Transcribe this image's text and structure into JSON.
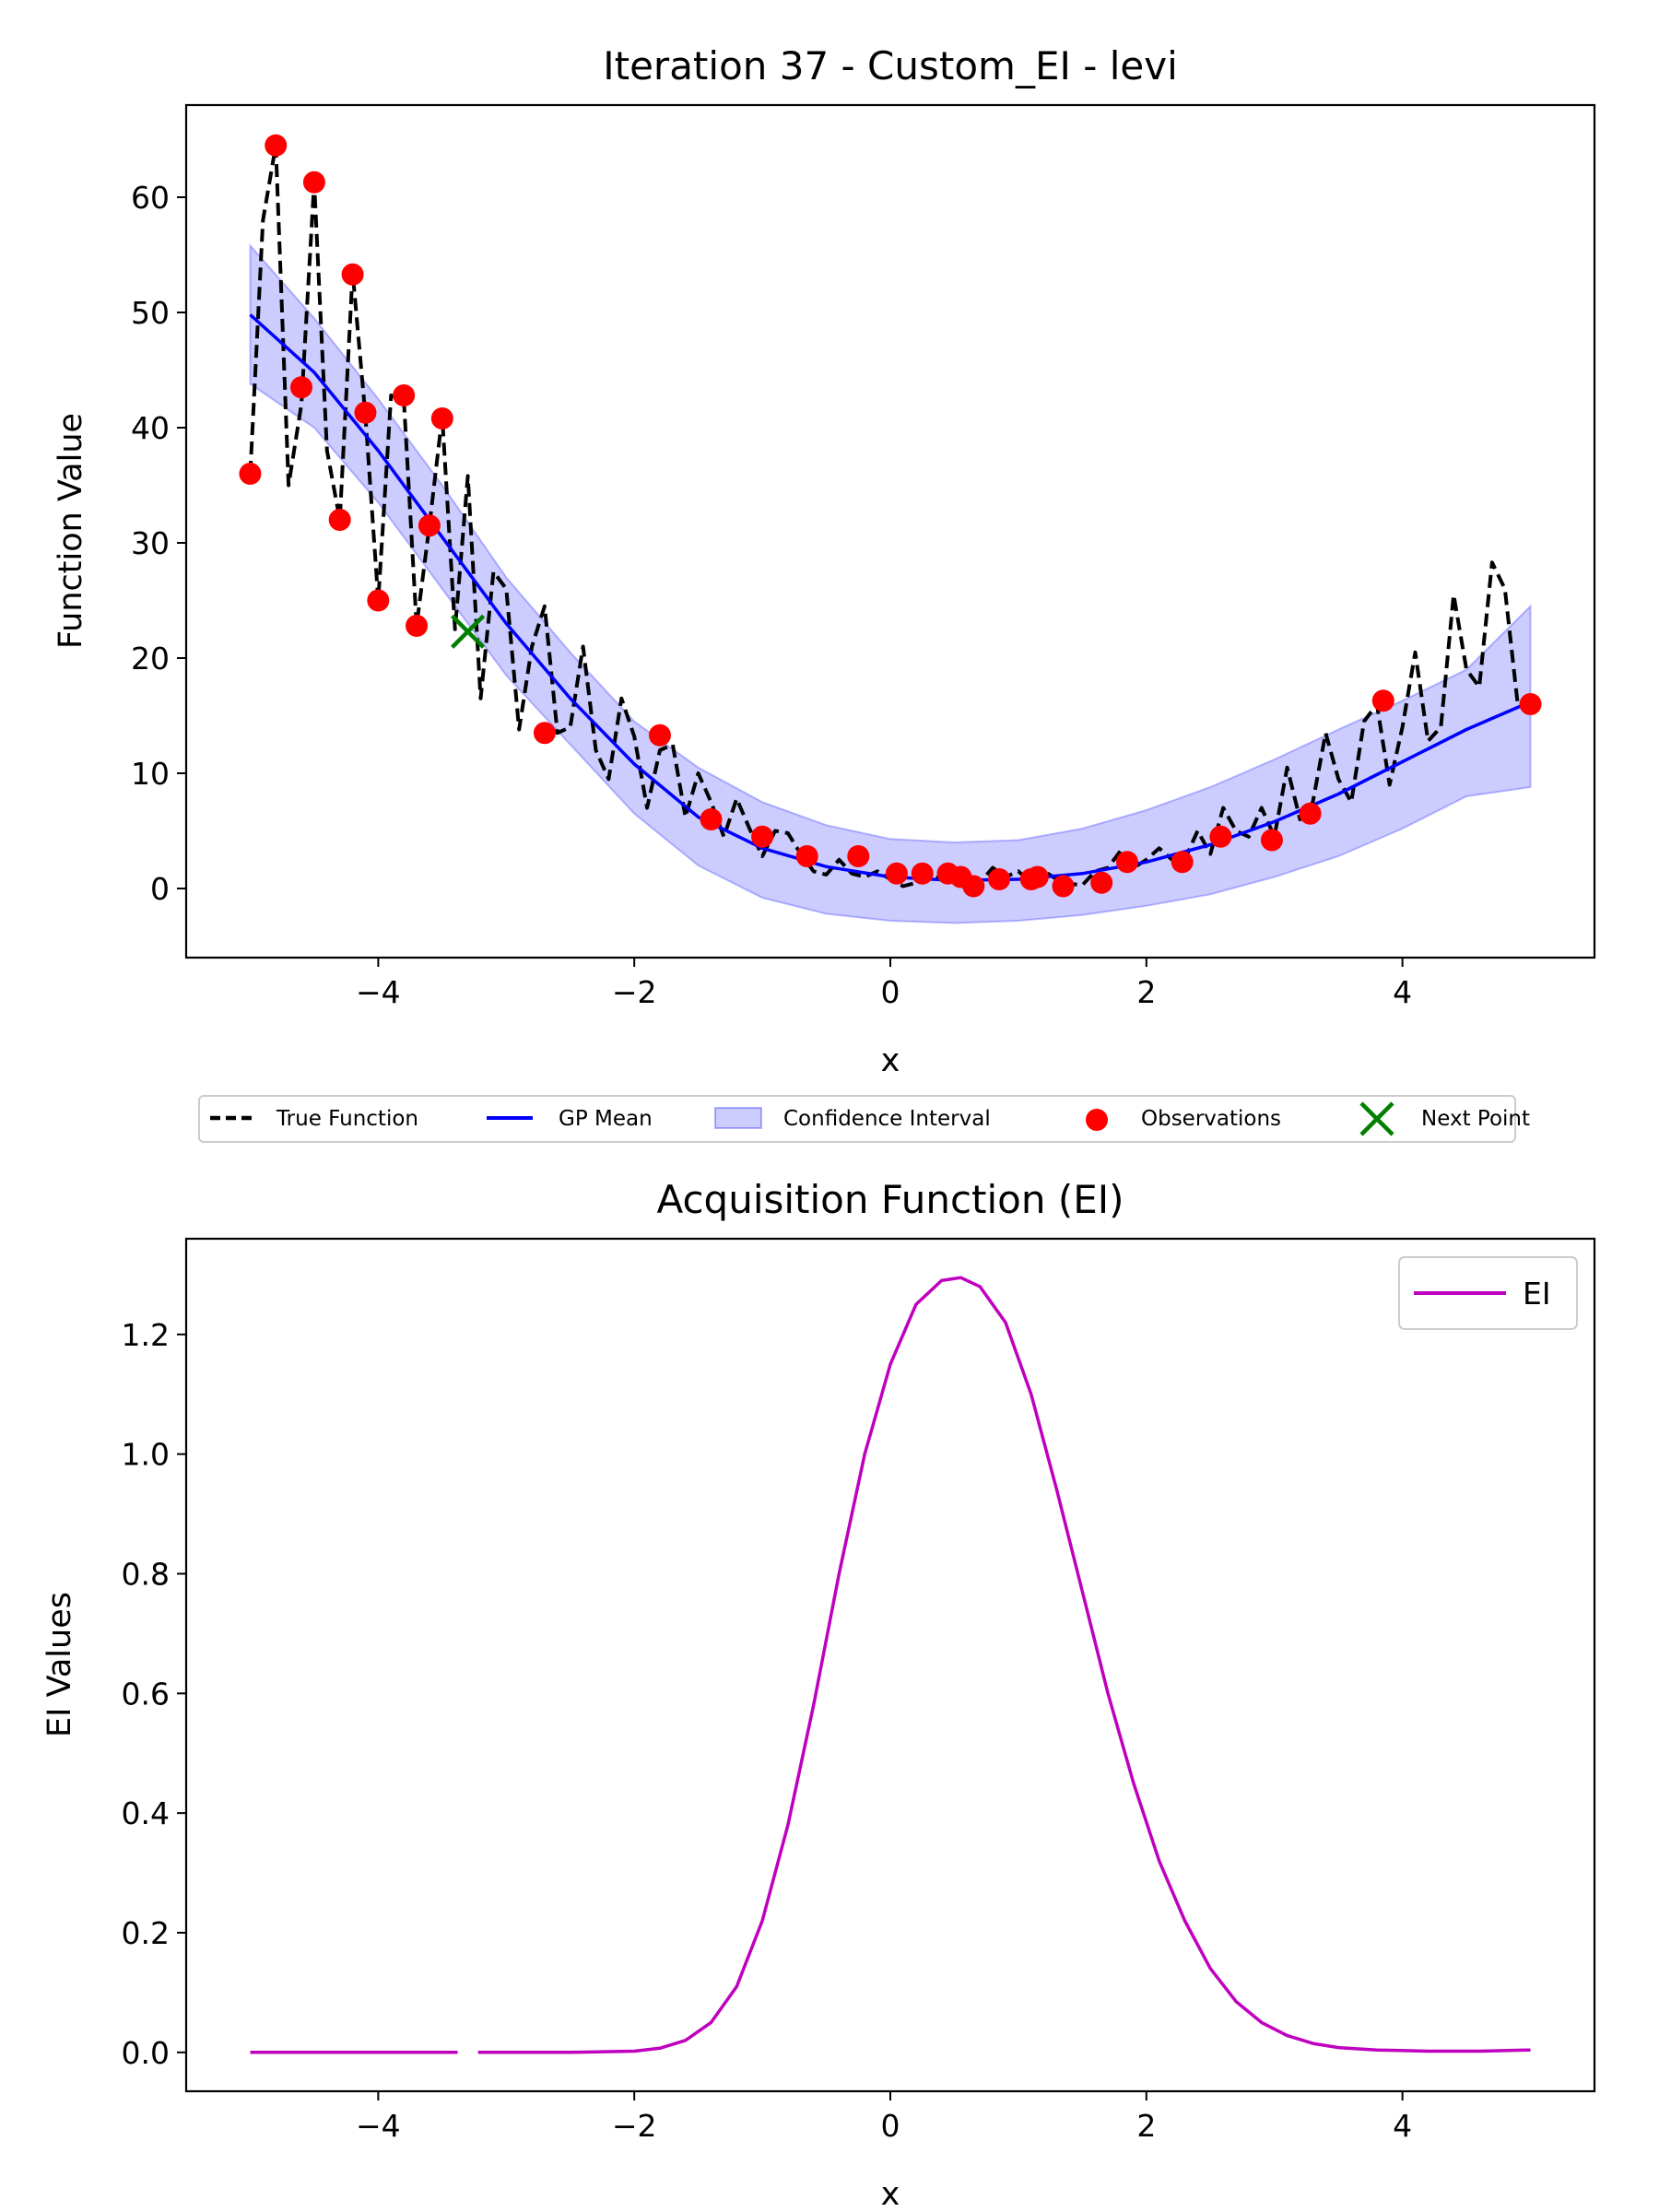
{
  "colors": {
    "true_function": "#000000",
    "gp_mean": "#0000ff",
    "confidence": "#0000ff",
    "observations": "#ff0000",
    "next_point": "#008000",
    "ei": "#bf00bf"
  },
  "chart_data": [
    {
      "type": "line",
      "title": "Iteration 37 - Custom_EI - levi",
      "xlabel": "x",
      "ylabel": "Function Value",
      "xlim": [
        -5.5,
        5.5
      ],
      "ylim": [
        -6,
        68
      ],
      "xticks": [
        -4,
        -2,
        0,
        2,
        4
      ],
      "xtick_labels": [
        "−4",
        "−2",
        "0",
        "2",
        "4"
      ],
      "yticks": [
        0,
        10,
        20,
        30,
        40,
        50,
        60
      ],
      "ytick_labels": [
        "0",
        "10",
        "20",
        "30",
        "40",
        "50",
        "60"
      ],
      "grid": false,
      "legend_position": "below-plot",
      "legend": [
        {
          "key": "true_function",
          "label": "True Function"
        },
        {
          "key": "gp_mean",
          "label": "GP Mean"
        },
        {
          "key": "confidence",
          "label": "Confidence Interval"
        },
        {
          "key": "observations",
          "label": "Observations"
        },
        {
          "key": "next_point",
          "label": "Next Point"
        }
      ],
      "true_function": {
        "x": [
          -5.0,
          -4.9,
          -4.8,
          -4.7,
          -4.6,
          -4.5,
          -4.4,
          -4.3,
          -4.2,
          -4.1,
          -4.0,
          -3.9,
          -3.8,
          -3.7,
          -3.6,
          -3.5,
          -3.4,
          -3.3,
          -3.2,
          -3.1,
          -3.0,
          -2.9,
          -2.8,
          -2.7,
          -2.6,
          -2.5,
          -2.4,
          -2.3,
          -2.2,
          -2.1,
          -2.0,
          -1.9,
          -1.8,
          -1.7,
          -1.6,
          -1.5,
          -1.4,
          -1.3,
          -1.2,
          -1.1,
          -1.0,
          -0.9,
          -0.8,
          -0.7,
          -0.6,
          -0.5,
          -0.4,
          -0.3,
          -0.2,
          -0.1,
          0.0,
          0.1,
          0.2,
          0.3,
          0.4,
          0.5,
          0.6,
          0.7,
          0.8,
          0.9,
          1.0,
          1.1,
          1.2,
          1.3,
          1.4,
          1.5,
          1.6,
          1.7,
          1.8,
          1.9,
          2.0,
          2.1,
          2.2,
          2.3,
          2.4,
          2.5,
          2.6,
          2.7,
          2.8,
          2.9,
          3.0,
          3.1,
          3.2,
          3.3,
          3.4,
          3.5,
          3.6,
          3.7,
          3.8,
          3.9,
          4.0,
          4.1,
          4.2,
          4.3,
          4.4,
          4.5,
          4.6,
          4.7,
          4.8,
          4.9,
          5.0
        ],
        "y": [
          36.0,
          58.0,
          64.5,
          35.0,
          42.0,
          61.3,
          38.0,
          32.0,
          53.5,
          41.0,
          25.0,
          42.8,
          42.5,
          22.8,
          31.5,
          41.0,
          22.5,
          35.8,
          16.5,
          27.5,
          26.0,
          13.8,
          21.0,
          24.5,
          13.5,
          14.0,
          21.0,
          12.0,
          9.5,
          16.5,
          13.2,
          7.0,
          12.0,
          12.5,
          6.2,
          10.0,
          7.5,
          4.5,
          7.8,
          5.2,
          2.8,
          5.0,
          4.8,
          3.0,
          1.5,
          1.2,
          2.5,
          1.3,
          1.0,
          1.5,
          0.8,
          0.2,
          0.5,
          1.2,
          0.8,
          0.8,
          0.1,
          0.5,
          1.8,
          1.0,
          1.5,
          0.5,
          1.5,
          0.8,
          0.4,
          0.3,
          1.5,
          1.8,
          3.3,
          1.8,
          2.5,
          3.5,
          2.5,
          2.5,
          5.0,
          3.0,
          7.0,
          5.0,
          4.5,
          7.0,
          4.5,
          10.5,
          6.0,
          7.5,
          13.5,
          9.5,
          7.5,
          14.5,
          16.0,
          9.0,
          14.0,
          20.5,
          12.8,
          14.0,
          25.5,
          19.0,
          17.5,
          28.3,
          26.0,
          16.0,
          16.0
        ]
      },
      "gp_mean": {
        "x": [
          -5.0,
          -4.5,
          -4.0,
          -3.5,
          -3.0,
          -2.5,
          -2.0,
          -1.5,
          -1.0,
          -0.5,
          0.0,
          0.5,
          1.0,
          1.5,
          2.0,
          2.5,
          3.0,
          3.5,
          4.0,
          4.5,
          5.0
        ],
        "y": [
          49.8,
          44.8,
          38.0,
          30.5,
          23.0,
          16.5,
          10.8,
          6.2,
          3.5,
          1.9,
          1.0,
          0.7,
          0.8,
          1.3,
          2.3,
          3.8,
          5.8,
          8.2,
          11.0,
          13.8,
          16.2
        ]
      },
      "confidence": {
        "x": [
          -5.0,
          -4.5,
          -4.0,
          -3.5,
          -3.0,
          -2.5,
          -2.0,
          -1.5,
          -1.0,
          -0.5,
          0.0,
          0.5,
          1.0,
          1.5,
          2.0,
          2.5,
          3.0,
          3.5,
          4.0,
          4.5,
          5.0
        ],
        "upper": [
          55.8,
          49.5,
          42.5,
          35.0,
          27.0,
          20.5,
          14.5,
          10.5,
          7.5,
          5.5,
          4.3,
          4.0,
          4.2,
          5.2,
          6.8,
          8.8,
          11.2,
          13.8,
          16.3,
          19.0,
          24.5
        ],
        "lower": [
          43.8,
          40.0,
          33.5,
          26.0,
          18.5,
          12.5,
          6.5,
          2.0,
          -0.8,
          -2.2,
          -2.8,
          -3.0,
          -2.8,
          -2.3,
          -1.5,
          -0.5,
          1.0,
          2.8,
          5.2,
          8.0,
          8.8
        ]
      },
      "observations": {
        "x": [
          -5.0,
          -4.8,
          -4.6,
          -4.5,
          -4.3,
          -4.2,
          -4.1,
          -4.0,
          -3.8,
          -3.7,
          -3.6,
          -3.5,
          -2.7,
          -1.8,
          -1.4,
          -1.0,
          -0.65,
          -0.25,
          0.05,
          0.25,
          0.45,
          0.55,
          0.65,
          0.85,
          1.1,
          1.15,
          1.35,
          1.65,
          1.85,
          2.28,
          2.58,
          2.98,
          3.28,
          3.85,
          5.0
        ],
        "y": [
          36.0,
          64.5,
          43.5,
          61.3,
          32.0,
          53.3,
          41.3,
          25.0,
          42.8,
          22.8,
          31.5,
          40.8,
          13.5,
          13.3,
          6.0,
          4.5,
          2.8,
          2.8,
          1.3,
          1.3,
          1.3,
          1.0,
          0.2,
          0.8,
          0.8,
          1.0,
          0.2,
          0.5,
          2.3,
          2.3,
          4.5,
          4.2,
          6.5,
          16.3,
          16.0
        ]
      },
      "next_point": {
        "x": -3.3,
        "y": 22.3
      }
    },
    {
      "type": "line",
      "title": "Acquisition Function (EI)",
      "xlabel": "x",
      "ylabel": "EI Values",
      "xlim": [
        -5.5,
        5.5
      ],
      "ylim": [
        -0.065,
        1.36
      ],
      "xticks": [
        -4,
        -2,
        0,
        2,
        4
      ],
      "xtick_labels": [
        "−4",
        "−2",
        "0",
        "2",
        "4"
      ],
      "yticks": [
        0.0,
        0.2,
        0.4,
        0.6,
        0.8,
        1.0,
        1.2
      ],
      "ytick_labels": [
        "0.0",
        "0.2",
        "0.4",
        "0.6",
        "0.8",
        "1.0",
        "1.2"
      ],
      "grid": false,
      "legend_position": "upper-right",
      "legend": [
        {
          "key": "ei",
          "label": "EI"
        }
      ],
      "ei": {
        "gap_between": [
          -3.38,
          -3.22
        ],
        "x": [
          -5.0,
          -4.0,
          -3.38,
          -3.22,
          -2.5,
          -2.0,
          -1.8,
          -1.6,
          -1.4,
          -1.2,
          -1.0,
          -0.8,
          -0.6,
          -0.4,
          -0.2,
          0.0,
          0.2,
          0.4,
          0.55,
          0.7,
          0.9,
          1.1,
          1.3,
          1.5,
          1.7,
          1.9,
          2.1,
          2.3,
          2.5,
          2.7,
          2.9,
          3.1,
          3.3,
          3.5,
          3.8,
          4.2,
          4.6,
          5.0
        ],
        "y": [
          0.0,
          0.0,
          0.0,
          0.0,
          0.0,
          0.002,
          0.007,
          0.02,
          0.05,
          0.11,
          0.22,
          0.38,
          0.58,
          0.8,
          1.0,
          1.15,
          1.25,
          1.29,
          1.295,
          1.28,
          1.22,
          1.1,
          0.94,
          0.77,
          0.6,
          0.45,
          0.32,
          0.22,
          0.14,
          0.085,
          0.05,
          0.028,
          0.015,
          0.008,
          0.004,
          0.002,
          0.002,
          0.004
        ]
      }
    }
  ]
}
